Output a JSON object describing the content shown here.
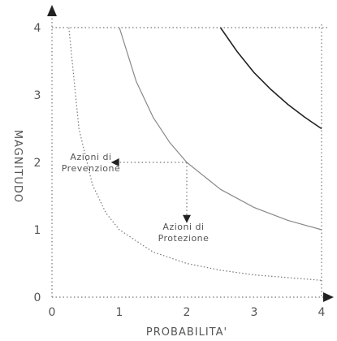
{
  "chart_data": {
    "type": "line",
    "xlabel": "PROBABILITA'",
    "ylabel": "MAGNITUDO",
    "xlim": [
      0,
      4
    ],
    "ylim": [
      0,
      4
    ],
    "x_ticks": [
      "0",
      "1",
      "2",
      "3",
      "4"
    ],
    "y_ticks": [
      "0",
      "1",
      "2",
      "3",
      "4"
    ],
    "grid": "dotted lines at x=4 and y=4",
    "series": [
      {
        "style": "dotted",
        "x": [
          0.25,
          0.4,
          0.6,
          0.8,
          1.0,
          1.5,
          2.0,
          2.5,
          3.0,
          3.5,
          4.0
        ],
        "y": [
          4.0,
          2.5,
          1.67,
          1.25,
          1.0,
          0.67,
          0.5,
          0.4,
          0.33,
          0.29,
          0.25
        ],
        "color": "#777777"
      },
      {
        "style": "solid",
        "x": [
          1.0,
          1.25,
          1.5,
          1.75,
          2.0,
          2.5,
          3.0,
          3.5,
          4.0
        ],
        "y": [
          4.0,
          3.2,
          2.67,
          2.29,
          2.0,
          1.6,
          1.33,
          1.14,
          1.0
        ],
        "color": "#888888"
      },
      {
        "style": "solid",
        "x": [
          2.5,
          2.75,
          3.0,
          3.25,
          3.5,
          3.75,
          4.0
        ],
        "y": [
          4.0,
          3.64,
          3.33,
          3.08,
          2.86,
          2.67,
          2.5
        ],
        "color": "#222222"
      }
    ],
    "annotations": [
      {
        "lines": [
          "Azioni di",
          "Prevenzione"
        ],
        "arrow": "horizontal from (2, 2) to y-axis"
      },
      {
        "lines": [
          "Azioni di",
          "Protezione"
        ],
        "arrow": "vertical from (2, 2) down to y = 1.1"
      }
    ]
  }
}
